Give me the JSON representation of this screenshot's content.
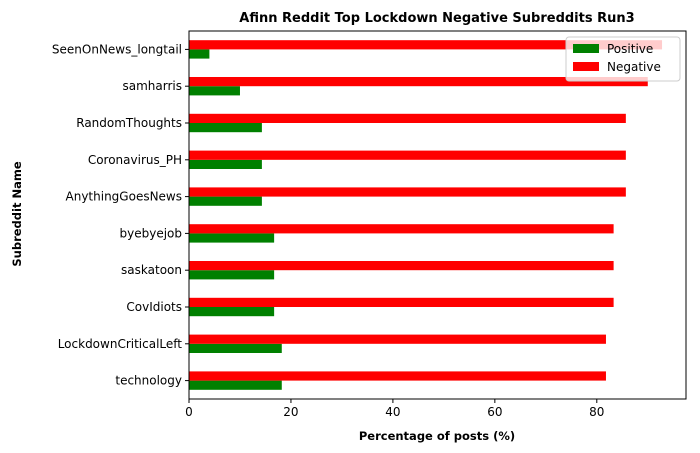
{
  "chart_data": {
    "type": "bar",
    "orientation": "horizontal",
    "title": "Afinn Reddit Top Lockdown Negative Subreddits Run3",
    "xlabel": "Percentage of posts (%)",
    "ylabel": "Subreddit Name",
    "xlim": [
      0,
      97.5
    ],
    "xticks": [
      0,
      20,
      40,
      60,
      80
    ],
    "categories": [
      "technology",
      "LockdownCriticalLeft",
      "CovIdiots",
      "saskatoon",
      "byebyejob",
      "AnythingGoesNews",
      "Coronavirus_PH",
      "RandomThoughts",
      "samharris",
      "SeenOnNews_longtail"
    ],
    "series": [
      {
        "name": "Positive",
        "color": "#008000",
        "values": [
          18.2,
          18.2,
          16.7,
          16.7,
          16.7,
          14.3,
          14.3,
          14.3,
          10.0,
          4.0
        ]
      },
      {
        "name": "Negative",
        "color": "#ff0000",
        "values": [
          81.8,
          81.8,
          83.3,
          83.3,
          83.3,
          85.7,
          85.7,
          85.7,
          90.0,
          92.8
        ]
      }
    ],
    "legend": "top-right",
    "grid": false
  }
}
